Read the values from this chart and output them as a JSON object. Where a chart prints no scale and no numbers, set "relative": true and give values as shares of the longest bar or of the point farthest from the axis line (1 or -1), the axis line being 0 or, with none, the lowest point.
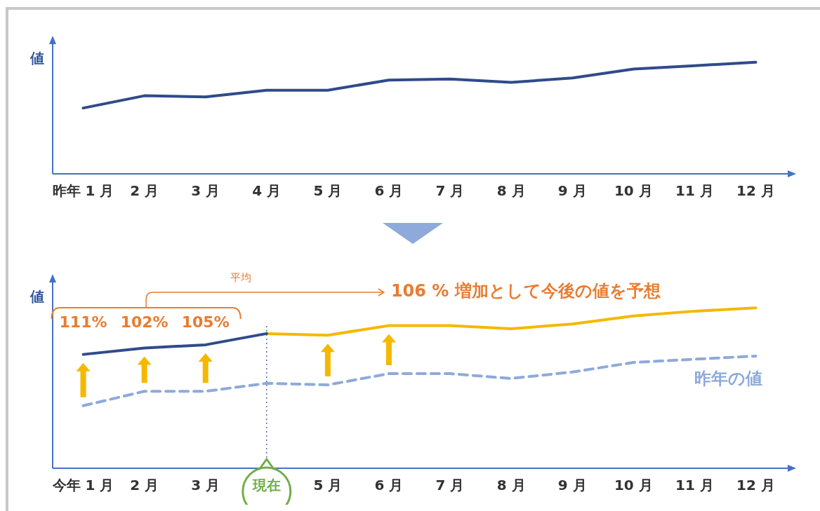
{
  "chart_data": [
    {
      "type": "line",
      "relative": true,
      "ylabel": "値",
      "categories": [
        "昨年 1 月",
        "2 月",
        "3 月",
        "4 月",
        "5 月",
        "6 月",
        "7 月",
        "8 月",
        "9 月",
        "10 月",
        "11 月",
        "12 月"
      ],
      "series": [
        {
          "color": "#2f4b8a",
          "values": [
            0.59,
            0.7,
            0.69,
            0.75,
            0.75,
            0.84,
            0.85,
            0.82,
            0.86,
            0.94,
            0.97,
            1
          ]
        }
      ],
      "grid": false,
      "legend": false
    },
    {
      "type": "line",
      "relative": true,
      "ylabel": "値",
      "categories": [
        "今年 1 月",
        "2 月",
        "3 月",
        "現在",
        "5 月",
        "6 月",
        "7 月",
        "8 月",
        "9 月",
        "10 月",
        "11 月",
        "12 月"
      ],
      "series": [
        {
          "color": "#2f4b8a",
          "values": [
            0.71,
            0.75,
            0.77,
            0.84,
            null,
            null,
            null,
            null,
            null,
            null,
            null,
            null
          ]
        },
        {
          "color": "#f5b800",
          "values": [
            null,
            null,
            null,
            0.84,
            0.83,
            0.89,
            0.89,
            0.87,
            0.9,
            0.95,
            0.98,
            1
          ]
        },
        {
          "name": "昨年の値",
          "color": "#8eaadb",
          "line_style": "dashed",
          "values": [
            0.39,
            0.48,
            0.48,
            0.53,
            0.52,
            0.59,
            0.59,
            0.56,
            0.6,
            0.66,
            0.68,
            0.7
          ]
        }
      ],
      "ref_lines": [
        {
          "axis": "x",
          "value": "現在",
          "color": "#2f4b8a",
          "line_style": "dotted"
        }
      ],
      "annotations": [
        "111%",
        "102%",
        "105%",
        "平均",
        "106 % 増加として今後の値を予想"
      ],
      "grid": false,
      "legend": false
    }
  ]
}
